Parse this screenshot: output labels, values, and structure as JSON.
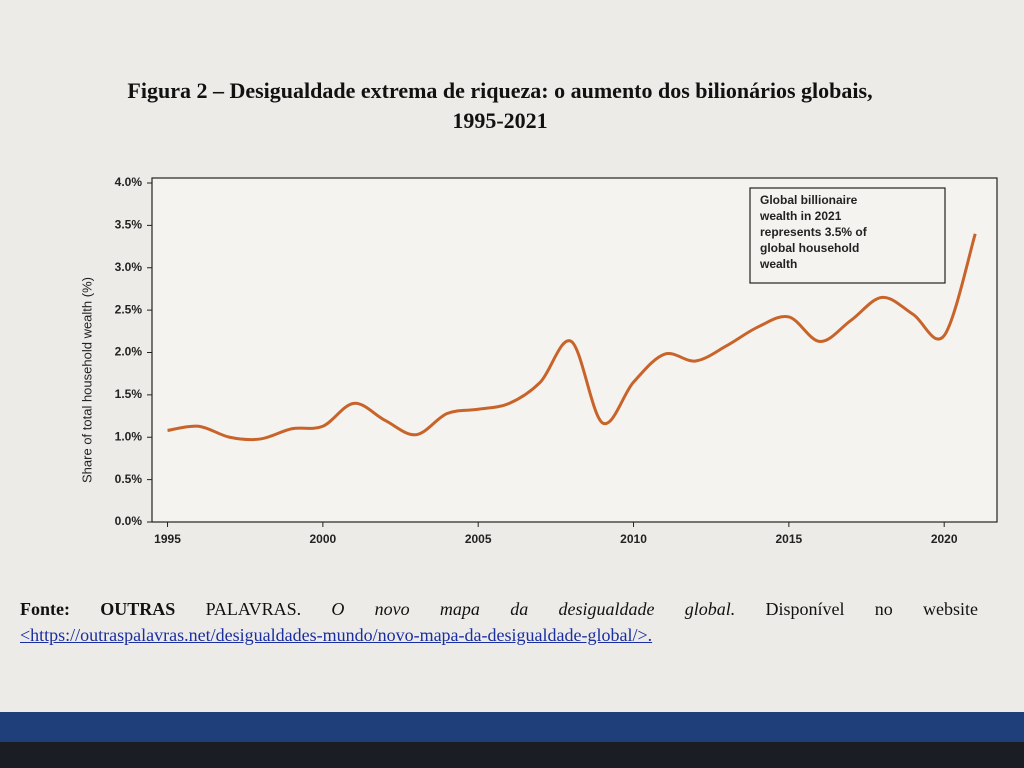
{
  "document": {
    "caption": [
      "Figura 2 – Desigualdade extrema de riqueza: o aumento dos bilionários globais,",
      "1995-2021"
    ],
    "source": {
      "label": "Fonte:",
      "author_bold": "OUTRAS",
      "author_rest": "PALAVRAS.",
      "work": "O novo mapa da desigualdade global.",
      "text": "Disponível no website",
      "link": "<https://outraspalavras.net/desigualdades-mundo/novo-mapa-da-desigualdade-global/>."
    }
  },
  "chart_data": {
    "type": "line",
    "y_label": "Share of total household wealth (%)",
    "annotation": [
      "Global billionaire",
      "wealth in 2021",
      "represents 3.5% of",
      "global household",
      "wealth"
    ],
    "x": [
      1995,
      1996,
      1997,
      1998,
      1999,
      2000,
      2001,
      2002,
      2003,
      2004,
      2005,
      2006,
      2007,
      2008,
      2009,
      2010,
      2011,
      2012,
      2013,
      2014,
      2015,
      2016,
      2017,
      2018,
      2019,
      2020,
      2021
    ],
    "series": [
      {
        "color": "#c8642a",
        "values": [
          1.08,
          1.13,
          1.0,
          0.98,
          1.1,
          1.13,
          1.4,
          1.2,
          1.03,
          1.28,
          1.33,
          1.4,
          1.65,
          2.13,
          1.17,
          1.65,
          1.98,
          1.9,
          2.08,
          2.3,
          2.42,
          2.13,
          2.38,
          2.65,
          2.45,
          2.2,
          3.4
        ]
      }
    ],
    "xlim": [
      1994.5,
      2021.7
    ],
    "xticks": [
      1995,
      2000,
      2005,
      2010,
      2015,
      2020
    ],
    "ylim": [
      0,
      4
    ],
    "yticks": [
      {
        "value": 0,
        "label": "0.0%"
      },
      {
        "value": 0.5,
        "label": "0.5%"
      },
      {
        "value": 1,
        "label": "1.0%"
      },
      {
        "value": 1.5,
        "label": "1.5%"
      },
      {
        "value": 2,
        "label": "2.0%"
      },
      {
        "value": 2.5,
        "label": "2.5%"
      },
      {
        "value": 3,
        "label": "3.0%"
      },
      {
        "value": 3.5,
        "label": "3.5%"
      },
      {
        "value": 4,
        "label": "4.0%"
      }
    ]
  }
}
